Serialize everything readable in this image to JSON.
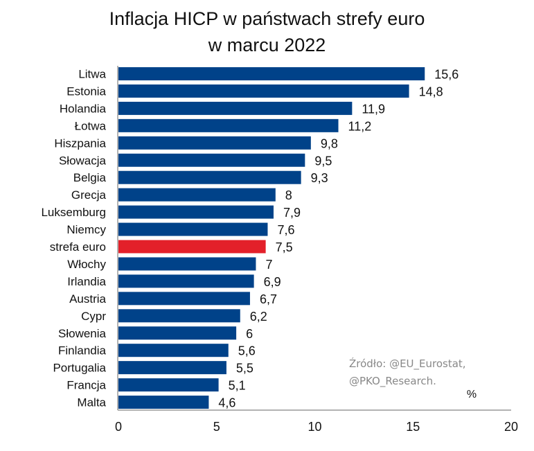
{
  "chart_data": {
    "type": "bar",
    "orientation": "horizontal",
    "title_line1": "Inflacja HICP w państwach strefy euro",
    "title_line2": "w marcu 2022",
    "categories": [
      "Litwa",
      "Estonia",
      "Holandia",
      "Łotwa",
      "Hiszpania",
      "Słowacja",
      "Belgia",
      "Grecja",
      "Luksemburg",
      "Niemcy",
      "strefa euro",
      "Włochy",
      "Irlandia",
      "Austria",
      "Cypr",
      "Słowenia",
      "Finlandia",
      "Portugalia",
      "Francja",
      "Malta"
    ],
    "values": [
      15.6,
      14.8,
      11.9,
      11.2,
      9.8,
      9.5,
      9.3,
      8,
      7.9,
      7.6,
      7.5,
      7,
      6.9,
      6.7,
      6.2,
      6,
      5.6,
      5.5,
      5.1,
      4.6
    ],
    "value_labels": [
      "15,6",
      "14,8",
      "11,9",
      "11,2",
      "9,8",
      "9,5",
      "9,3",
      "8",
      "7,9",
      "7,6",
      "7,5",
      "7",
      "6,9",
      "6,7",
      "6,2",
      "6",
      "5,6",
      "5,5",
      "5,1",
      "4,6"
    ],
    "highlight": "strefa euro",
    "xlim": [
      0,
      20
    ],
    "xticks": [
      "0",
      "5",
      "10",
      "15",
      "20"
    ],
    "unit_label": "%",
    "grid": false,
    "colors": {
      "bar": "#004289",
      "highlight": "#e3202a"
    },
    "source_line1": "Źródło: @EU_Eurostat,",
    "source_line2": "@PKO_Research."
  }
}
